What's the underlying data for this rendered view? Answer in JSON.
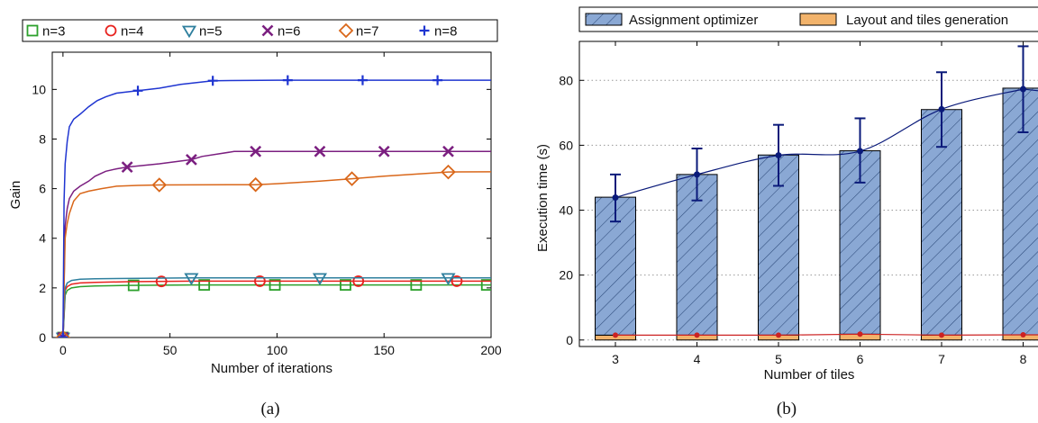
{
  "chart_data": [
    {
      "type": "line",
      "caption": "(a)",
      "xlabel": "Number of iterations",
      "ylabel": "Gain",
      "xlim": [
        -5,
        200
      ],
      "ylim": [
        0,
        11.5
      ],
      "xticks": [
        0,
        50,
        100,
        150,
        200
      ],
      "yticks": [
        0,
        2,
        4,
        6,
        8,
        10
      ],
      "grid": false,
      "legend_position": "top, outside plot",
      "series": [
        {
          "name": "n=3",
          "color": "#2ca02c",
          "marker": "square",
          "x": [
            0,
            1,
            2,
            4,
            8,
            15,
            30,
            60,
            100,
            200
          ],
          "y": [
            0,
            1.7,
            1.9,
            2.0,
            2.05,
            2.08,
            2.1,
            2.12,
            2.12,
            2.12
          ],
          "marker_x": [
            0,
            33,
            66,
            99,
            132,
            165,
            198
          ]
        },
        {
          "name": "n=4",
          "color": "#e8231f",
          "marker": "circle",
          "x": [
            0,
            1,
            2,
            4,
            8,
            15,
            30,
            60,
            100,
            200
          ],
          "y": [
            0,
            1.9,
            2.05,
            2.15,
            2.2,
            2.22,
            2.25,
            2.27,
            2.27,
            2.27
          ],
          "marker_x": [
            0,
            46,
            92,
            138,
            184
          ]
        },
        {
          "name": "n=5",
          "color": "#2e7f9e",
          "marker": "triangle-down",
          "x": [
            0,
            1,
            2,
            4,
            8,
            15,
            30,
            60,
            100,
            200
          ],
          "y": [
            0,
            2.0,
            2.2,
            2.3,
            2.35,
            2.37,
            2.38,
            2.4,
            2.4,
            2.4
          ],
          "marker_x": [
            0,
            60,
            120,
            180
          ]
        },
        {
          "name": "n=6",
          "color": "#7b1f80",
          "marker": "x",
          "x": [
            0,
            1,
            2,
            3,
            5,
            8,
            12,
            15,
            20,
            25,
            30,
            45,
            60,
            65,
            80,
            120,
            200
          ],
          "y": [
            0,
            4.5,
            5.2,
            5.6,
            5.9,
            6.1,
            6.3,
            6.5,
            6.7,
            6.8,
            6.87,
            7.0,
            7.17,
            7.3,
            7.5,
            7.5,
            7.5
          ],
          "marker_x": [
            0,
            30,
            60,
            90,
            120,
            150,
            180
          ]
        },
        {
          "name": "n=7",
          "color": "#d9671a",
          "marker": "diamond",
          "x": [
            0,
            1,
            2,
            3,
            5,
            8,
            12,
            18,
            25,
            35,
            45,
            90,
            100,
            120,
            135,
            150,
            180,
            200
          ],
          "y": [
            0,
            4.0,
            4.6,
            5.0,
            5.5,
            5.8,
            5.9,
            6.0,
            6.1,
            6.13,
            6.15,
            6.16,
            6.2,
            6.3,
            6.4,
            6.5,
            6.67,
            6.68
          ],
          "marker_x": [
            0,
            45,
            90,
            135,
            180
          ]
        },
        {
          "name": "n=8",
          "color": "#1f35d1",
          "marker": "plus",
          "x": [
            0,
            0.5,
            1,
            2,
            3,
            5,
            8,
            12,
            16,
            20,
            25,
            30,
            35,
            45,
            55,
            70,
            100,
            200
          ],
          "y": [
            0,
            5.5,
            7.0,
            7.9,
            8.5,
            8.8,
            9.0,
            9.3,
            9.55,
            9.7,
            9.85,
            9.9,
            9.95,
            10.05,
            10.2,
            10.35,
            10.37,
            10.37
          ],
          "marker_x": [
            0,
            35,
            70,
            105,
            140,
            175
          ]
        }
      ]
    },
    {
      "type": "bar",
      "caption": "(b)",
      "xlabel": "Number of tiles",
      "ylabel": "Execution time (s)",
      "categories": [
        "3",
        "4",
        "5",
        "6",
        "7",
        "8"
      ],
      "ylim": [
        -2,
        92
      ],
      "yticks": [
        0,
        20,
        40,
        60,
        80
      ],
      "grid": "horizontal dotted",
      "legend_position": "top, outside plot",
      "stacked": true,
      "series": [
        {
          "name": "Layout and tiles generation",
          "color": "#f2b36b",
          "values": [
            1.5,
            1.5,
            1.5,
            1.8,
            1.5,
            1.6
          ]
        },
        {
          "name": "Assignment optimizer",
          "color": "#8aa8d4",
          "hatch": "diagonal",
          "values": [
            42.5,
            49.5,
            55.5,
            56.5,
            69.5,
            76.0
          ]
        }
      ],
      "error_bars": {
        "color": "#0a1a7a",
        "mean": [
          43.9,
          51.0,
          56.9,
          58.2,
          71.1,
          77.3
        ],
        "low": [
          36.5,
          43.0,
          47.5,
          48.5,
          59.5,
          64.0
        ],
        "high": [
          51.0,
          59.0,
          66.3,
          68.3,
          82.5,
          90.5
        ]
      },
      "baseline_line": {
        "color": "#cc2222",
        "values": [
          1.5,
          1.5,
          1.5,
          1.8,
          1.5,
          1.6
        ]
      }
    }
  ]
}
